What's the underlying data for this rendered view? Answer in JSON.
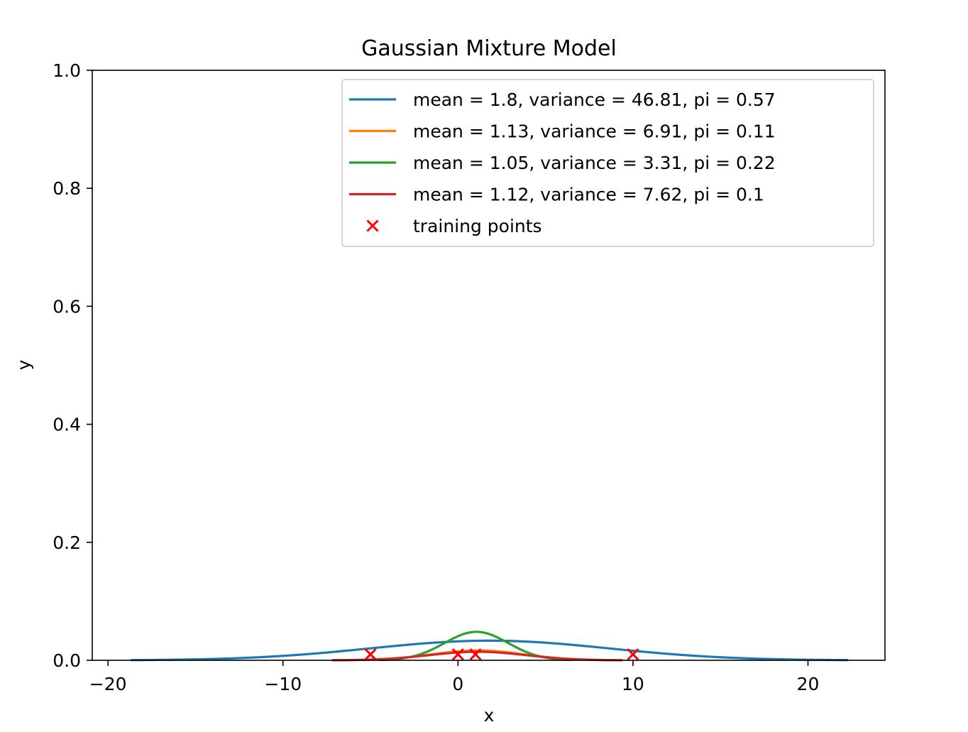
{
  "chart_data": {
    "type": "line",
    "title": "Gaussian Mixture Model",
    "xlabel": "x",
    "ylabel": "y",
    "xlim": [
      -20.9,
      24.4
    ],
    "ylim": [
      0.0,
      1.0
    ],
    "xticks": [
      -20,
      -10,
      0,
      10,
      20
    ],
    "xtick_labels": [
      "−20",
      "−10",
      "0",
      "10",
      "20"
    ],
    "yticks": [
      0.0,
      0.2,
      0.4,
      0.6,
      0.8,
      1.0
    ],
    "ytick_labels": [
      "0.0",
      "0.2",
      "0.4",
      "0.6",
      "0.8",
      "1.0"
    ],
    "grid": false,
    "legend_position": "top-right",
    "series": [
      {
        "name": "mean = 1.8, variance = 46.81, pi = 0.57",
        "mean": 1.8,
        "variance": 46.81,
        "pi": 0.57,
        "x_range": [
          -18.7,
          22.3
        ],
        "color": "#1f77b4"
      },
      {
        "name": "mean = 1.13, variance = 6.91, pi = 0.11",
        "mean": 1.13,
        "variance": 6.91,
        "pi": 0.11,
        "x_range": [
          -7.2,
          9.4
        ],
        "color": "#ff7f0e"
      },
      {
        "name": "mean = 1.05, variance = 3.31, pi = 0.22",
        "mean": 1.05,
        "variance": 3.31,
        "pi": 0.22,
        "x_range": [
          -4.5,
          6.5
        ],
        "color": "#2ca02c"
      },
      {
        "name": "mean = 1.12, variance = 7.62, pi = 0.1",
        "mean": 1.12,
        "variance": 7.62,
        "pi": 0.1,
        "x_range": [
          -7.2,
          9.4
        ],
        "color": "#d62728"
      }
    ],
    "scatter": {
      "name": "training points",
      "color": "#ff0000",
      "marker": "x",
      "points": [
        {
          "x": -5,
          "y": 0.01
        },
        {
          "x": 0,
          "y": 0.01
        },
        {
          "x": 1,
          "y": 0.01
        },
        {
          "x": 10,
          "y": 0.01
        }
      ]
    }
  }
}
